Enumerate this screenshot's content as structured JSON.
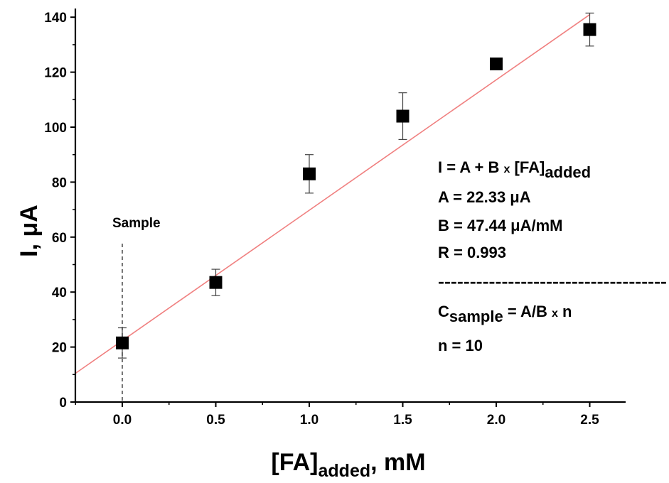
{
  "chart_data": {
    "type": "scatter",
    "xlabel": {
      "main": "[FA]",
      "sub": "added",
      "suffix": ", mM"
    },
    "ylabel": "I, μA",
    "xlim": [
      -0.25,
      2.65
    ],
    "ylim": [
      0,
      140
    ],
    "xticks": [
      "0.0",
      "0.5",
      "1.0",
      "1.5",
      "2.0",
      "2.5"
    ],
    "yticks": [
      "0",
      "20",
      "40",
      "60",
      "80",
      "100",
      "120",
      "140"
    ],
    "grid": false,
    "legend": "none",
    "points": [
      {
        "x": 0.0,
        "y": 21.5,
        "err": 5.5
      },
      {
        "x": 0.5,
        "y": 43.5,
        "err": 4.8
      },
      {
        "x": 1.0,
        "y": 83.0,
        "err": 7.0
      },
      {
        "x": 1.5,
        "y": 104.0,
        "err": 8.5
      },
      {
        "x": 2.0,
        "y": 123.0,
        "err": 1.0
      },
      {
        "x": 2.5,
        "y": 135.5,
        "err": 6.0
      }
    ],
    "fit": {
      "intercept": 22.33,
      "slope": 47.44,
      "color": "#f08080"
    },
    "marker_color": "#000000",
    "sample_marker": {
      "x": 0.0,
      "label": "Sample"
    },
    "annotations": {
      "equation": {
        "main": "I = A + B ",
        "times": "x",
        "rest": " [FA]",
        "sub": "added"
      },
      "a_line": "A = 22.33 μA",
      "b_line": "B = 47.44 μA/mM",
      "r_line": "R = 0.993",
      "dashes": "------------------------------------",
      "c_line": {
        "main": "C",
        "sub": "sample",
        "rest": " = A/B ",
        "times": "x",
        "end": " n"
      },
      "n_line": "n = 10"
    }
  }
}
